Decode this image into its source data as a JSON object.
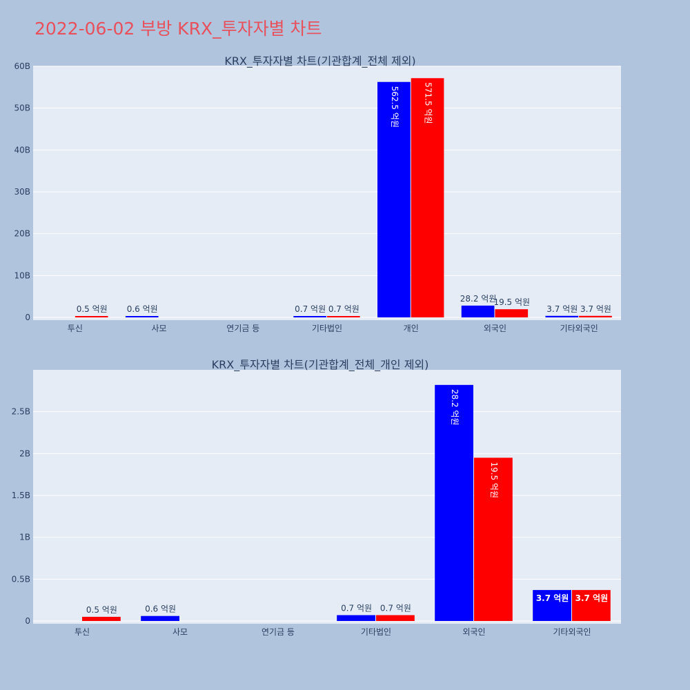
{
  "page": {
    "title": "2022-06-02 부방 KRX_투자자별 차트"
  },
  "colors": {
    "buy": "#0000ff",
    "sell": "#ff0000",
    "title": "#e8505b",
    "background": "#b0c4de",
    "plot": "#e5ecf6"
  },
  "chart_data": [
    {
      "type": "bar",
      "title": "KRX_투자자별 차트(기관합계_전체 제외)",
      "categories": [
        "투신",
        "사모",
        "연기금 등",
        "기타법인",
        "개인",
        "외국인",
        "기타외국인"
      ],
      "ylim": [
        0,
        60
      ],
      "yticks": [
        0,
        10,
        20,
        30,
        40,
        50,
        60
      ],
      "ytick_labels": [
        "0",
        "10B",
        "20B",
        "30B",
        "40B",
        "50B",
        "60B"
      ],
      "grid": true,
      "series": [
        {
          "color": "#0000ff",
          "values": [
            0,
            0.06,
            0,
            0.07,
            56.25,
            2.82,
            0.37
          ],
          "labels": [
            "",
            "0.6 억원",
            "",
            "0.7 억원",
            "562.5 억원",
            "28.2 억원",
            "3.7 억원"
          ]
        },
        {
          "color": "#ff0000",
          "values": [
            0.05,
            0,
            0,
            0.07,
            57.15,
            1.95,
            0.37
          ],
          "labels": [
            "0.5 억원",
            "",
            "",
            "0.7 억원",
            "571.5 억원",
            "19.5 억원",
            "3.7 억원"
          ]
        }
      ]
    },
    {
      "type": "bar",
      "title": "KRX_투자자별 차트(기관합계_전체_개인 제외)",
      "categories": [
        "투신",
        "사모",
        "연기금 등",
        "기타법인",
        "외국인",
        "기타외국인"
      ],
      "ylim": [
        0,
        3.0
      ],
      "yticks": [
        0,
        0.5,
        1,
        1.5,
        2,
        2.5
      ],
      "ytick_labels": [
        "0",
        "0.5B",
        "1B",
        "1.5B",
        "2B",
        "2.5B"
      ],
      "grid": true,
      "series": [
        {
          "color": "#0000ff",
          "values": [
            0,
            0.06,
            0,
            0.07,
            2.82,
            0.37
          ],
          "labels": [
            "",
            "0.6 억원",
            "",
            "0.7 억원",
            "28.2 억원",
            "3.7 억원"
          ]
        },
        {
          "color": "#ff0000",
          "values": [
            0.05,
            0,
            0,
            0.07,
            1.95,
            0.37
          ],
          "labels": [
            "0.5 억원",
            "",
            "",
            "0.7 억원",
            "19.5 억원",
            "3.7 억원"
          ]
        }
      ]
    }
  ]
}
